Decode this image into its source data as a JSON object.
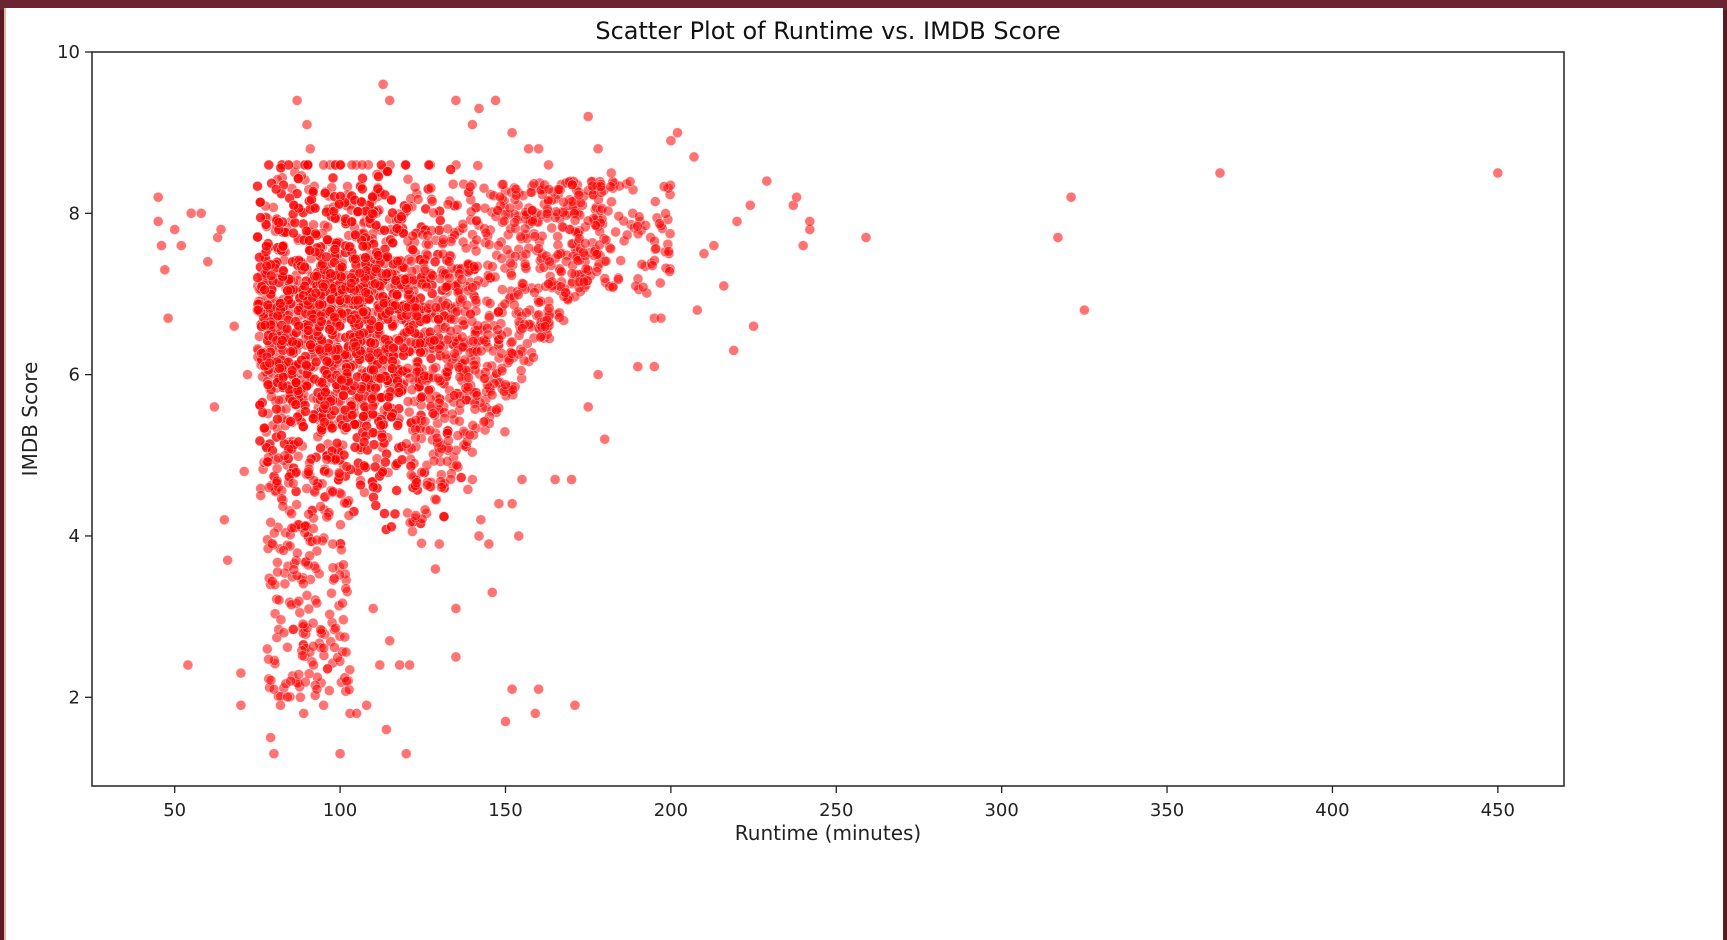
{
  "chart_data": {
    "type": "scatter",
    "title": "Scatter Plot of Runtime vs. IMDB Score",
    "xlabel": "Runtime (minutes)",
    "ylabel": "IMDB Score",
    "xlim": [
      25,
      470
    ],
    "ylim": [
      0.9,
      10.0
    ],
    "xticks": [
      50,
      100,
      150,
      200,
      250,
      300,
      350,
      400,
      450
    ],
    "yticks": [
      2,
      4,
      6,
      8,
      10
    ],
    "grid": false,
    "marker_color": "#ff0000",
    "marker_alpha": 0.55,
    "series": [
      {
        "points": [
          [
            45,
            8.2
          ],
          [
            45,
            7.9
          ],
          [
            46,
            7.6
          ],
          [
            47,
            7.3
          ],
          [
            48,
            6.7
          ],
          [
            50,
            7.8
          ],
          [
            52,
            7.6
          ],
          [
            54,
            2.4
          ],
          [
            55,
            8.0
          ],
          [
            58,
            8.0
          ],
          [
            60,
            7.4
          ],
          [
            62,
            5.6
          ],
          [
            63,
            7.7
          ],
          [
            64,
            7.8
          ],
          [
            65,
            4.2
          ],
          [
            66,
            3.7
          ],
          [
            68,
            6.6
          ],
          [
            70,
            2.3
          ],
          [
            70,
            1.9
          ],
          [
            71,
            4.8
          ],
          [
            72,
            6.0
          ],
          [
            75,
            6.8
          ],
          [
            76,
            4.5
          ],
          [
            78,
            2.6
          ],
          [
            79,
            1.5
          ],
          [
            80,
            2.1
          ],
          [
            80,
            1.3
          ],
          [
            82,
            1.9
          ],
          [
            83,
            2.8
          ],
          [
            85,
            2.2
          ],
          [
            87,
            9.4
          ],
          [
            88,
            2.0
          ],
          [
            89,
            1.8
          ],
          [
            90,
            9.1
          ],
          [
            91,
            8.8
          ],
          [
            92,
            2.4
          ],
          [
            93,
            2.1
          ],
          [
            95,
            1.9
          ],
          [
            100,
            1.3
          ],
          [
            102,
            2.2
          ],
          [
            103,
            1.8
          ],
          [
            105,
            1.8
          ],
          [
            108,
            1.9
          ],
          [
            110,
            3.1
          ],
          [
            112,
            2.4
          ],
          [
            114,
            1.6
          ],
          [
            115,
            2.7
          ],
          [
            118,
            2.4
          ],
          [
            120,
            1.3
          ],
          [
            121,
            2.4
          ],
          [
            113,
            9.6
          ],
          [
            115,
            9.4
          ],
          [
            135,
            9.4
          ],
          [
            140,
            9.1
          ],
          [
            142,
            9.3
          ],
          [
            147,
            9.4
          ],
          [
            152,
            9.0
          ],
          [
            157,
            8.8
          ],
          [
            160,
            8.8
          ],
          [
            163,
            8.6
          ],
          [
            175,
            9.2
          ],
          [
            178,
            8.8
          ],
          [
            182,
            8.5
          ],
          [
            130,
            3.9
          ],
          [
            135,
            3.1
          ],
          [
            135,
            2.5
          ],
          [
            140,
            4.7
          ],
          [
            142,
            4.0
          ],
          [
            145,
            3.9
          ],
          [
            146,
            3.3
          ],
          [
            148,
            4.4
          ],
          [
            152,
            4.4
          ],
          [
            154,
            4.0
          ],
          [
            155,
            4.7
          ],
          [
            150,
            1.7
          ],
          [
            152,
            2.1
          ],
          [
            159,
            1.8
          ],
          [
            160,
            2.1
          ],
          [
            165,
            4.7
          ],
          [
            170,
            4.7
          ],
          [
            171,
            1.9
          ],
          [
            175,
            5.6
          ],
          [
            180,
            5.2
          ],
          [
            178,
            6.0
          ],
          [
            190,
            6.1
          ],
          [
            195,
            6.1
          ],
          [
            195,
            6.7
          ],
          [
            197,
            6.7
          ],
          [
            200,
            8.9
          ],
          [
            202,
            9.0
          ],
          [
            207,
            8.7
          ],
          [
            208,
            6.8
          ],
          [
            210,
            7.5
          ],
          [
            213,
            7.6
          ],
          [
            216,
            7.1
          ],
          [
            219,
            6.3
          ],
          [
            220,
            7.9
          ],
          [
            224,
            8.1
          ],
          [
            225,
            6.6
          ],
          [
            229,
            8.4
          ],
          [
            237,
            8.1
          ],
          [
            238,
            8.2
          ],
          [
            240,
            7.6
          ],
          [
            242,
            7.8
          ],
          [
            242,
            7.9
          ],
          [
            259,
            7.7
          ],
          [
            317,
            7.7
          ],
          [
            321,
            8.2
          ],
          [
            325,
            6.8
          ],
          [
            366,
            8.5
          ],
          [
            450,
            8.5
          ]
        ]
      }
    ]
  }
}
